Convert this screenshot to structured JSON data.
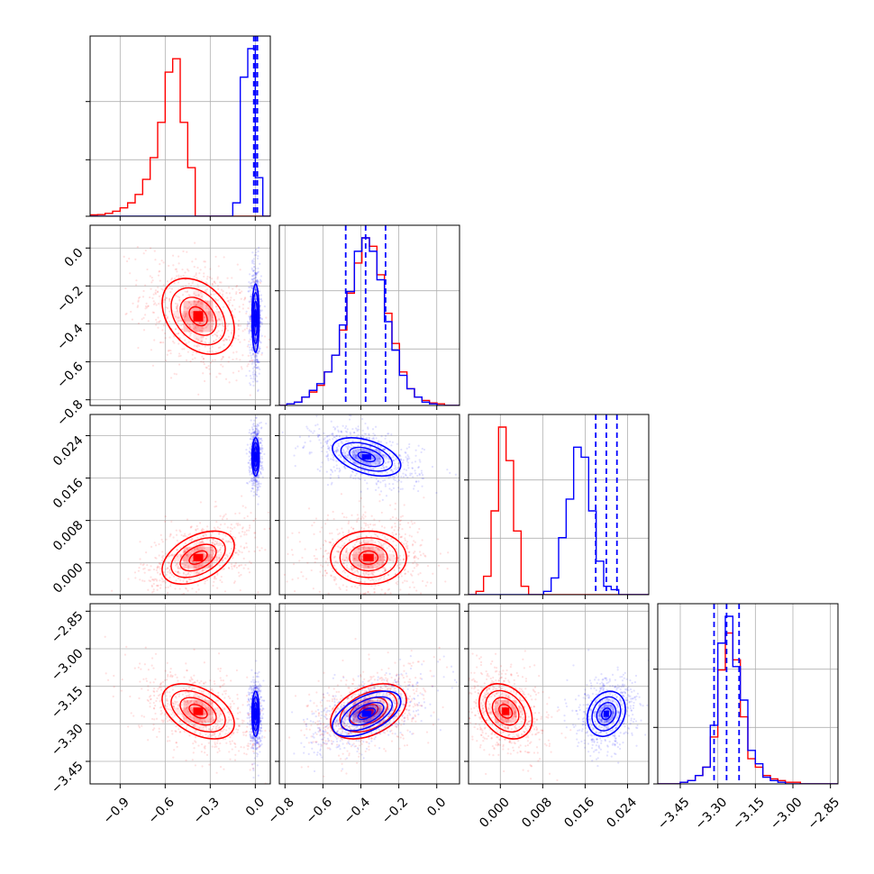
{
  "chart_data": {
    "type": "corner",
    "title": "",
    "colors": {
      "red": "#ff0000",
      "blue": "#0000ff",
      "grid": "#b0b0b0",
      "frame": "#000000"
    },
    "series_colors": [
      "#ff0000",
      "#0000ff"
    ],
    "parameters": [
      {
        "label": "",
        "range": [
          -1.1,
          0.1
        ],
        "ticks": [
          -0.9,
          -0.6,
          -0.3,
          0.0
        ],
        "tick_labels": [
          "−0.9",
          "−0.6",
          "−0.3",
          "0.0"
        ]
      },
      {
        "label": "",
        "range": [
          -0.83,
          0.12
        ],
        "ticks": [
          -0.8,
          -0.6,
          -0.4,
          -0.2,
          0.0
        ],
        "tick_labels": [
          "−0.8",
          "−0.6",
          "−0.4",
          "−0.2",
          "0.0"
        ]
      },
      {
        "label": "",
        "range": [
          -0.006,
          0.028
        ],
        "ticks": [
          0.0,
          0.008,
          0.016,
          0.024
        ],
        "tick_labels": [
          "0.000",
          "0.008",
          "0.016",
          "0.024"
        ]
      },
      {
        "label": "",
        "range": [
          -3.54,
          -2.82
        ],
        "ticks": [
          -3.45,
          -3.3,
          -3.15,
          -3.0,
          -2.85
        ],
        "tick_labels": [
          "−3.45",
          "−3.30",
          "−3.15",
          "−3.00",
          "−2.85"
        ]
      }
    ],
    "series": [
      {
        "name": "",
        "color": "#ff0000",
        "means": [
          -0.38,
          -0.36,
          0.001,
          -3.25
        ],
        "sds": [
          0.12,
          0.1,
          0.0025,
          0.055
        ],
        "correlations": {
          "1-0": -0.35,
          "2-0": 0.45,
          "2-1": 0.0,
          "3-0": -0.45,
          "3-1": 0.4,
          "3-2": -0.3
        },
        "scatter_extra": {
          "0": 0.24,
          "1": 0.16,
          "2": 0.0035,
          "3": 0.09
        },
        "hist_bins": {
          "0": {
            "lo": -1.1,
            "hi": 0.1,
            "counts": [
              0.008,
              0.01,
              0.017,
              0.03,
              0.05,
              0.08,
              0.13,
              0.22,
              0.35,
              0.56,
              0.86,
              0.94,
              0.56,
              0.29,
              0,
              0,
              0,
              0,
              0,
              0,
              0,
              0,
              0,
              0
            ]
          },
          "1": {
            "lo": -0.83,
            "hi": 0.12,
            "counts": [
              0,
              0.01,
              0.02,
              0.05,
              0.08,
              0.12,
              0.2,
              0.3,
              0.45,
              0.67,
              0.85,
              1.0,
              0.95,
              0.78,
              0.55,
              0.37,
              0.2,
              0.1,
              0.05,
              0.03,
              0.015,
              0.01,
              0,
              0
            ]
          },
          "2": {
            "lo": -0.006,
            "hi": 0.028,
            "counts": [
              0,
              0.02,
              0.11,
              0.5,
              1.0,
              0.8,
              0.38,
              0.05,
              0,
              0,
              0,
              0,
              0,
              0,
              0,
              0,
              0,
              0,
              0,
              0,
              0,
              0,
              0,
              0
            ]
          },
          "3": {
            "lo": -3.54,
            "hi": -2.82,
            "counts": [
              0,
              0,
              0,
              0.01,
              0.02,
              0.05,
              0.1,
              0.28,
              0.68,
              0.9,
              0.74,
              0.4,
              0.15,
              0.1,
              0.05,
              0.03,
              0.02,
              0.01,
              0.01,
              0,
              0,
              0,
              0,
              0
            ]
          }
        }
      },
      {
        "name": "",
        "color": "#0000ff",
        "means": [
          0.002,
          -0.37,
          0.02,
          -3.26
        ],
        "sds": [
          0.012,
          0.09,
          0.0018,
          0.045
        ],
        "correlations": {
          "1-0": 0.0,
          "2-0": 0.0,
          "2-1": -0.45,
          "3-0": 0.0,
          "3-1": 0.55,
          "3-2": 0.2
        },
        "scatter_extra": {
          "0": 0.03,
          "1": 0.13,
          "2": 0.0025,
          "3": 0.08
        },
        "quantile_lines": {
          "0": [
            -0.01,
            0.002,
            0.014
          ],
          "1": [
            -0.48,
            -0.375,
            -0.27
          ],
          "2": [
            0.018,
            0.02,
            0.022
          ],
          "3": [
            -3.315,
            -3.265,
            -3.215
          ]
        },
        "hist_bins": {
          "0": {
            "lo": -1.1,
            "hi": 0.1,
            "counts": [
              0,
              0,
              0,
              0,
              0,
              0,
              0,
              0,
              0,
              0,
              0,
              0,
              0,
              0,
              0,
              0,
              0,
              0,
              0,
              0.08,
              0.83,
              1.0,
              0.23,
              0
            ]
          },
          "1": {
            "lo": -0.83,
            "hi": 0.12,
            "counts": [
              0,
              0.01,
              0.02,
              0.05,
              0.09,
              0.13,
              0.2,
              0.3,
              0.48,
              0.68,
              0.92,
              1.0,
              0.92,
              0.75,
              0.5,
              0.33,
              0.18,
              0.1,
              0.05,
              0.02,
              0.01,
              0,
              0,
              0
            ]
          },
          "2": {
            "lo": -0.006,
            "hi": 0.028,
            "counts": [
              0,
              0,
              0,
              0,
              0,
              0,
              0,
              0,
              0,
              0,
              0.02,
              0.1,
              0.34,
              0.57,
              0.88,
              0.82,
              0.5,
              0.2,
              0.05,
              0.03,
              0,
              0,
              0,
              0
            ]
          },
          "3": {
            "lo": -3.54,
            "hi": -2.82,
            "counts": [
              0,
              0,
              0,
              0.01,
              0.02,
              0.05,
              0.1,
              0.35,
              0.84,
              1.0,
              0.7,
              0.5,
              0.2,
              0.12,
              0.04,
              0.02,
              0.01,
              0,
              0,
              0,
              0,
              0,
              0,
              0
            ]
          }
        }
      }
    ],
    "grid": true,
    "legend": "none"
  }
}
